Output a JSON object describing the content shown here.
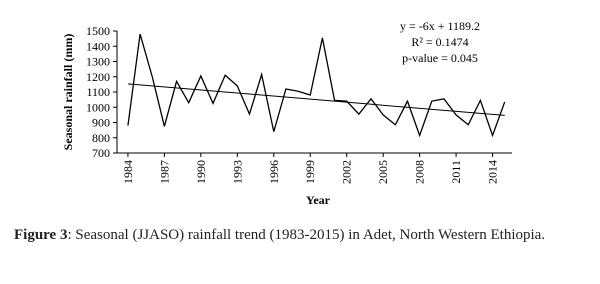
{
  "chart_data": {
    "type": "line",
    "x_label": "Year",
    "y_label": "Seasonal rainfall (mm)",
    "x": [
      1984,
      1985,
      1986,
      1987,
      1988,
      1989,
      1990,
      1991,
      1992,
      1993,
      1994,
      1995,
      1996,
      1997,
      1998,
      1999,
      2000,
      2001,
      2002,
      2003,
      2004,
      2005,
      2006,
      2007,
      2008,
      2009,
      2010,
      2011,
      2012,
      2013,
      2014,
      2015
    ],
    "values": [
      880,
      1480,
      1200,
      875,
      1170,
      1030,
      1205,
      1025,
      1210,
      1140,
      955,
      1215,
      840,
      1120,
      1105,
      1080,
      1455,
      1045,
      1040,
      955,
      1055,
      950,
      885,
      1040,
      815,
      1040,
      1055,
      950,
      885,
      1045,
      815,
      1035
    ],
    "color": "#000000",
    "trend_color": "#000000",
    "xlim": [
      1983.1,
      2015.6
    ],
    "xticks": [
      1984,
      1987,
      1990,
      1993,
      1996,
      1999,
      2002,
      2005,
      2008,
      2011,
      2014
    ],
    "ylim": [
      700,
      1500
    ],
    "yticks": [
      700,
      800,
      900,
      1000,
      1100,
      1200,
      1300,
      1400,
      1500
    ],
    "annotations": [
      "y = -6x + 1189.2",
      "R² = 0.1474",
      "p-value = 0.045"
    ]
  },
  "caption": {
    "label": "Figure 3",
    "text": ": Seasonal (JJASO) rainfall trend (1983-2015) in Adet, North Western Ethiopia."
  }
}
